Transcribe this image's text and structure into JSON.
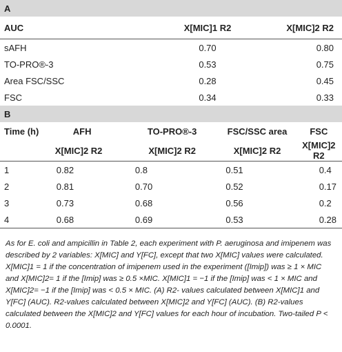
{
  "tableA": {
    "section": "A",
    "headers": [
      "AUC",
      "X[MIC]1 R2",
      "X[MIC]2 R2"
    ],
    "rows": [
      [
        "sAFH",
        "0.70",
        "0.80"
      ],
      [
        "TO-PRO®-3",
        "0.53",
        "0.75"
      ],
      [
        "Area FSC/SSC",
        "0.28",
        "0.45"
      ],
      [
        "FSC",
        "0.34",
        "0.33"
      ]
    ]
  },
  "tableB": {
    "section": "B",
    "header1": [
      "Time (h)",
      "AFH",
      "TO-PRO®-3",
      "FSC/SSC area",
      "FSC"
    ],
    "header2": [
      "X[MIC]2 R2",
      "X[MIC]2 R2",
      "X[MIC]2 R2",
      "X[MIC]2 R2"
    ],
    "rows": [
      [
        "1",
        "0.82",
        "0.8",
        "0.51",
        "0.4"
      ],
      [
        "2",
        "0.81",
        "0.70",
        "0.52",
        "0.17"
      ],
      [
        "3",
        "0.73",
        "0.68",
        "0.56",
        "0.2"
      ],
      [
        "4",
        "0.68",
        "0.69",
        "0.53",
        "0.28"
      ]
    ]
  },
  "caption": "As for E. coli and ampicillin in Table 2, each experiment with P. aeruginosa and imipenem was described by 2 variables: X[MIC] and Y[FC], except that two X[MIC] values were calculated. X[MIC]1 = 1 if the concentration of imipenem used in the experiment ([Imip]) was ≥ 1 × MIC and X[MIC]2= 1 if the [Imip] was ≥ 0.5 ×MIC. X[MIC]1 = −1 if the [Imip] was < 1 × MIC and X[MIC]2= −1 if the [Imip] was < 0.5 × MIC. (A) R2- values calculated between X[MIC]1 and Y[FC] (AUC). R2-values calculated between X[MIC]2 and Y[FC] (AUC). (B) R2-values calculated between the X[MIC]2 and Y[FC] values for each hour of incubation. Two-tailed P < 0.0001."
}
